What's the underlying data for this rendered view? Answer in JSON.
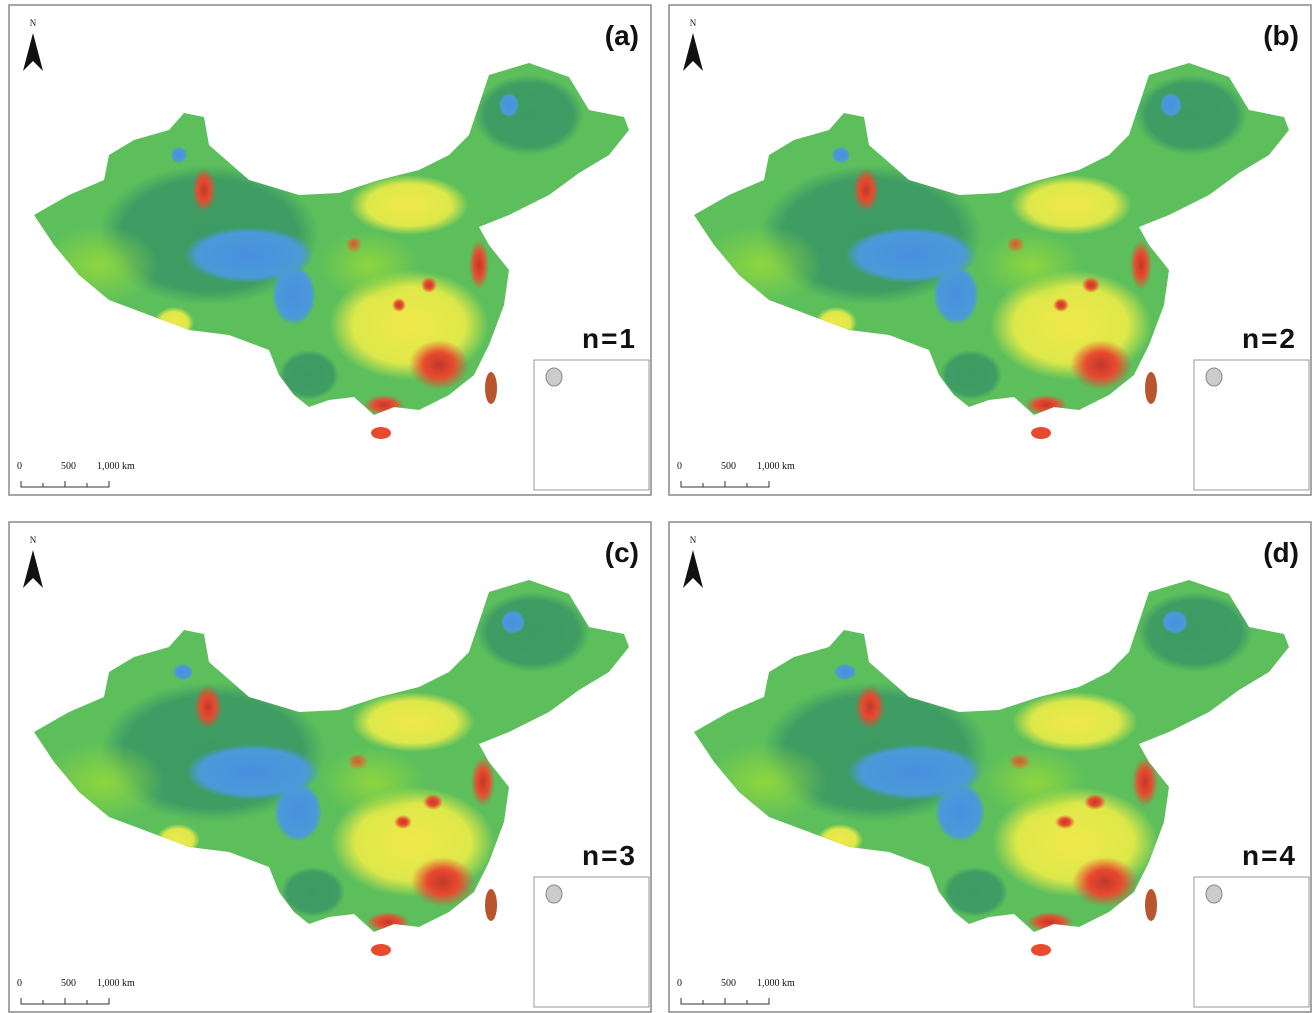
{
  "panels": [
    {
      "label": "(a)",
      "n_label": "n=1",
      "north": "N",
      "scale": [
        "0",
        "500",
        "1,000 km"
      ]
    },
    {
      "label": "(b)",
      "n_label": "n=2",
      "north": "N",
      "scale": [
        "0",
        "500",
        "1,000 km"
      ]
    },
    {
      "label": "(c)",
      "n_label": "n=3",
      "north": "N",
      "scale": [
        "0",
        "500",
        "1,000 km"
      ]
    },
    {
      "label": "(d)",
      "n_label": "n=4",
      "north": "N",
      "scale": [
        "0",
        "500",
        "1,000 km"
      ]
    }
  ]
}
